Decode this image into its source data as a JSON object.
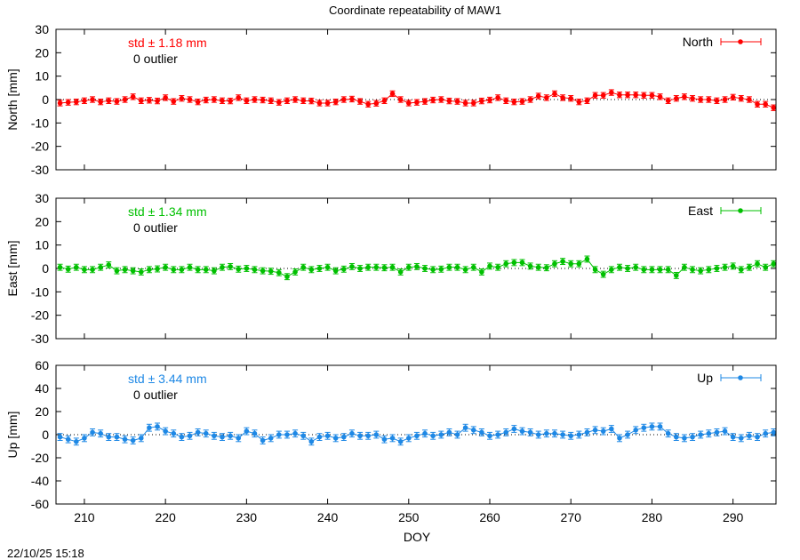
{
  "title": "Coordinate repeatability of MAW1",
  "timestamp": "22/10/25 15:18",
  "chart_data": {
    "type": "scatter",
    "title": "Coordinate repeatability of MAW1",
    "xlabel": "DOY",
    "xlim": [
      206.5,
      295.3
    ],
    "xticks": [
      210,
      220,
      230,
      240,
      250,
      260,
      270,
      280,
      290
    ],
    "panels": [
      {
        "name": "North",
        "ylabel": "North [mm]",
        "ylim": [
          -30,
          30
        ],
        "yticks": [
          -30,
          -20,
          -10,
          0,
          10,
          20,
          30
        ],
        "color": "#ff0000",
        "std_label": "std ± 1.18 mm",
        "outlier_label": "0 outlier",
        "legend": "North",
        "error": 1.2,
        "x": [
          207,
          208,
          209,
          210,
          211,
          212,
          213,
          214,
          215,
          216,
          217,
          218,
          219,
          220,
          221,
          222,
          223,
          224,
          225,
          226,
          227,
          228,
          229,
          230,
          231,
          232,
          233,
          234,
          235,
          236,
          237,
          238,
          239,
          240,
          241,
          242,
          243,
          244,
          245,
          246,
          247,
          248,
          249,
          250,
          251,
          252,
          253,
          254,
          255,
          256,
          257,
          258,
          259,
          260,
          261,
          262,
          263,
          264,
          265,
          266,
          267,
          268,
          269,
          270,
          271,
          272,
          273,
          274,
          275,
          276,
          277,
          278,
          279,
          280,
          281,
          282,
          283,
          284,
          285,
          286,
          287,
          288,
          289,
          290,
          291,
          292,
          293,
          294,
          295
        ],
        "y": [
          -1.5,
          -1.2,
          -1.0,
          -0.5,
          0.0,
          -1.0,
          -0.5,
          -0.8,
          0.0,
          1.2,
          -0.5,
          -0.3,
          -0.6,
          0.8,
          -0.8,
          0.5,
          0.0,
          -1.0,
          -0.2,
          0.0,
          -0.5,
          -0.6,
          0.8,
          -0.5,
          0.0,
          -0.2,
          -0.5,
          -1.2,
          -0.5,
          0.0,
          -0.5,
          -0.6,
          -1.5,
          -1.5,
          -1.0,
          0.0,
          0.2,
          -0.8,
          -2.0,
          -1.6,
          -0.5,
          2.5,
          0.0,
          -1.5,
          -1.2,
          -0.8,
          -0.2,
          0.0,
          -0.6,
          -0.8,
          -1.5,
          -1.5,
          -0.6,
          -0.2,
          0.8,
          -0.5,
          -1.0,
          -0.8,
          0.0,
          1.5,
          0.8,
          2.5,
          0.8,
          0.5,
          -1.0,
          -0.5,
          1.8,
          1.8,
          3.0,
          2.0,
          2.0,
          2.0,
          1.8,
          1.8,
          1.2,
          -0.5,
          0.5,
          1.2,
          0.5,
          0.0,
          0.0,
          -0.5,
          0.0,
          1.0,
          0.5,
          0.0,
          -2.0,
          -2.0,
          -3.5
        ]
      },
      {
        "name": "East",
        "ylabel": "East [mm]",
        "ylim": [
          -30,
          30
        ],
        "yticks": [
          -30,
          -20,
          -10,
          0,
          10,
          20,
          30
        ],
        "color": "#00c000",
        "std_label": "std ± 1.34 mm",
        "outlier_label": "0 outlier",
        "legend": "East",
        "error": 1.3,
        "x": [
          207,
          208,
          209,
          210,
          211,
          212,
          213,
          214,
          215,
          216,
          217,
          218,
          219,
          220,
          221,
          222,
          223,
          224,
          225,
          226,
          227,
          228,
          229,
          230,
          231,
          232,
          233,
          234,
          235,
          236,
          237,
          238,
          239,
          240,
          241,
          242,
          243,
          244,
          245,
          246,
          247,
          248,
          249,
          250,
          251,
          252,
          253,
          254,
          255,
          256,
          257,
          258,
          259,
          260,
          261,
          262,
          263,
          264,
          265,
          266,
          267,
          268,
          269,
          270,
          271,
          272,
          273,
          274,
          275,
          276,
          277,
          278,
          279,
          280,
          281,
          282,
          283,
          284,
          285,
          286,
          287,
          288,
          289,
          290,
          291,
          292,
          293,
          294,
          295
        ],
        "y": [
          0.5,
          -0.3,
          0.5,
          -0.5,
          -0.5,
          0.5,
          1.5,
          -1.0,
          -0.5,
          -1.0,
          -1.5,
          -0.5,
          -0.2,
          0.5,
          -0.5,
          -0.5,
          0.5,
          -0.5,
          -0.5,
          -1.0,
          0.5,
          0.8,
          -0.3,
          0.0,
          -0.5,
          -1.0,
          -1.2,
          -1.8,
          -3.5,
          -1.5,
          0.5,
          -0.5,
          0.0,
          0.5,
          -1.0,
          -0.3,
          0.8,
          0.0,
          0.5,
          0.5,
          0.3,
          0.5,
          -1.5,
          0.5,
          0.8,
          0.0,
          -0.5,
          -0.3,
          0.5,
          0.5,
          -0.5,
          0.5,
          -1.5,
          1.0,
          0.5,
          2.0,
          2.5,
          2.5,
          1.0,
          0.5,
          0.3,
          2.0,
          3.0,
          2.0,
          2.0,
          4.0,
          -0.5,
          -2.5,
          -0.5,
          0.5,
          0.0,
          0.5,
          -0.5,
          -0.5,
          -0.5,
          -0.5,
          -3.0,
          0.5,
          -0.5,
          -1.0,
          -0.5,
          0.0,
          0.5,
          1.0,
          -0.5,
          0.5,
          2.0,
          0.5,
          2.0
        ]
      },
      {
        "name": "Up",
        "ylabel": "Up [mm]",
        "ylim": [
          -60,
          60
        ],
        "yticks": [
          -60,
          -40,
          -20,
          0,
          20,
          40,
          60
        ],
        "color": "#1e88e5",
        "std_label": "std ± 3.44 mm",
        "outlier_label": "0 outlier",
        "legend": "Up",
        "error": 3.0,
        "x": [
          207,
          208,
          209,
          210,
          211,
          212,
          213,
          214,
          215,
          216,
          217,
          218,
          219,
          220,
          221,
          222,
          223,
          224,
          225,
          226,
          227,
          228,
          229,
          230,
          231,
          232,
          233,
          234,
          235,
          236,
          237,
          238,
          239,
          240,
          241,
          242,
          243,
          244,
          245,
          246,
          247,
          248,
          249,
          250,
          251,
          252,
          253,
          254,
          255,
          256,
          257,
          258,
          259,
          260,
          261,
          262,
          263,
          264,
          265,
          266,
          267,
          268,
          269,
          270,
          271,
          272,
          273,
          274,
          275,
          276,
          277,
          278,
          279,
          280,
          281,
          282,
          283,
          284,
          285,
          286,
          287,
          288,
          289,
          290,
          291,
          292,
          293,
          294,
          295
        ],
        "y": [
          -2,
          -4,
          -6,
          -3,
          2,
          1,
          -2,
          -2,
          -4,
          -5,
          -3,
          6,
          7,
          3,
          1,
          -2,
          -1,
          2,
          1,
          -1,
          -2,
          -1,
          -3,
          3,
          1,
          -5,
          -3,
          0,
          0,
          1,
          -1,
          -6,
          -2,
          -1,
          -3,
          -2,
          1,
          -1,
          -1,
          0,
          -4,
          -3,
          -6,
          -3,
          -1,
          1,
          -1,
          0,
          2,
          0,
          6,
          4,
          2,
          -1,
          0,
          2,
          5,
          3,
          2,
          0,
          1,
          1,
          0,
          -1,
          0,
          2,
          4,
          3,
          5,
          -3,
          0,
          4,
          6,
          7,
          7,
          1,
          -2,
          -3,
          -2,
          0,
          1,
          2,
          3,
          -2,
          -3,
          -1,
          -2,
          1,
          2
        ]
      }
    ]
  }
}
